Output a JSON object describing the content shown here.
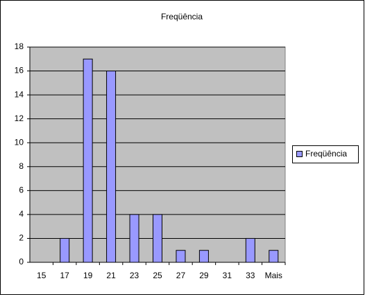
{
  "chart_data": {
    "type": "bar",
    "title": "Freqüência",
    "categories": [
      "15",
      "17",
      "19",
      "21",
      "23",
      "25",
      "27",
      "29",
      "31",
      "33",
      "Mais"
    ],
    "series": [
      {
        "name": "Freqüência",
        "color": "#9999ff",
        "values": [
          0,
          2,
          17,
          16,
          4,
          4,
          1,
          1,
          0,
          2,
          1
        ]
      }
    ],
    "ylim": [
      0,
      18
    ],
    "yticks": [
      0,
      2,
      4,
      6,
      8,
      10,
      12,
      14,
      16,
      18
    ],
    "grid": true,
    "legend": "right"
  }
}
